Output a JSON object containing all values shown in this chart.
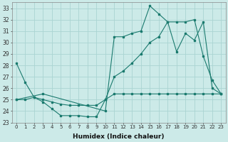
{
  "xlabel": "Humidex (Indice chaleur)",
  "background_color": "#cceae8",
  "grid_color": "#aad4d2",
  "line_color": "#1a7a6e",
  "xlim": [
    -0.5,
    23.5
  ],
  "ylim": [
    23,
    33.5
  ],
  "yticks": [
    23,
    24,
    25,
    26,
    27,
    28,
    29,
    30,
    31,
    32,
    33
  ],
  "xticks": [
    0,
    1,
    2,
    3,
    4,
    5,
    6,
    7,
    8,
    9,
    10,
    11,
    12,
    13,
    14,
    15,
    16,
    17,
    18,
    19,
    20,
    21,
    22,
    23
  ],
  "line1_x": [
    0,
    1,
    2,
    3,
    4,
    5,
    6,
    7,
    8,
    9,
    10,
    11,
    12,
    13,
    14,
    15,
    16,
    17,
    18,
    19,
    20,
    21,
    22,
    23
  ],
  "line1_y": [
    28.2,
    26.5,
    25.2,
    25.0,
    24.8,
    24.6,
    24.5,
    24.5,
    24.5,
    24.5,
    25.0,
    25.5,
    25.5,
    25.5,
    25.5,
    25.5,
    25.5,
    25.5,
    25.5,
    25.5,
    25.5,
    25.5,
    25.5,
    25.5
  ],
  "line2_x": [
    0,
    3,
    10,
    11,
    12,
    13,
    14,
    15,
    16,
    17,
    18,
    19,
    20,
    21,
    22,
    23
  ],
  "line2_y": [
    25.0,
    25.5,
    24.0,
    30.5,
    30.5,
    30.8,
    31.0,
    33.2,
    32.5,
    31.8,
    31.8,
    31.8,
    32.0,
    28.8,
    26.7,
    25.5
  ],
  "line3_x": [
    0,
    1,
    2,
    3,
    4,
    5,
    6,
    7,
    8,
    9,
    10,
    11,
    12,
    13,
    14,
    15,
    16,
    17,
    18,
    19,
    20,
    21,
    22,
    23
  ],
  "line3_y": [
    25.0,
    25.0,
    25.2,
    24.8,
    24.2,
    23.6,
    23.6,
    23.6,
    23.5,
    23.5,
    25.0,
    27.0,
    27.5,
    28.2,
    29.0,
    30.0,
    30.5,
    31.8,
    29.2,
    30.8,
    30.2,
    31.8,
    26.0,
    25.5
  ]
}
